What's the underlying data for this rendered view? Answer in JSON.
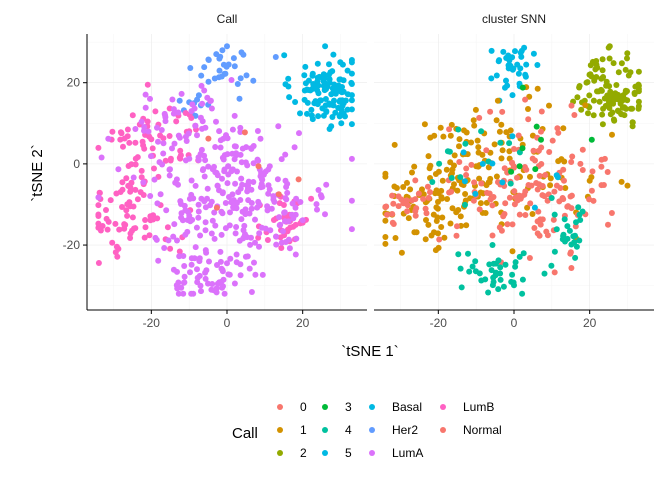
{
  "chart_data": {
    "type": "scatter",
    "xlabel": "`tSNE 1`",
    "ylabel": "`tSNE 2`",
    "xlim": [
      -37,
      37
    ],
    "ylim": [
      -36,
      32
    ],
    "x_ticks": [
      -20,
      0,
      20
    ],
    "y_ticks": [
      -20,
      0,
      20
    ],
    "x_tick_labels": [
      "-20",
      "0",
      "20"
    ],
    "y_tick_labels": [
      "-20",
      "0",
      "20"
    ],
    "grid": true,
    "legend": {
      "position": "bottom",
      "title": "Call",
      "columns": [
        [
          "0",
          "1",
          "2"
        ],
        [
          "3",
          "4",
          "5"
        ],
        [
          "Basal",
          "Her2",
          "LumA"
        ],
        [
          "LumB",
          "Normal"
        ]
      ]
    },
    "colors": {
      "0": "#F8766D",
      "1": "#D39200",
      "2": "#93AA00",
      "3": "#00BA38",
      "4": "#00C19F",
      "5": "#00B9E3",
      "Basal": "#00B9E3",
      "Her2": "#619CFF",
      "LumA": "#DB72FB",
      "LumB": "#FF61C3",
      "Normal": "#F8766D"
    },
    "panels": [
      {
        "strip": "Call",
        "clusters": [
          {
            "group": "Basal",
            "n": 120,
            "cx": 26,
            "cy": 18,
            "sx": 4.5,
            "sy": 4.5
          },
          {
            "group": "Her2",
            "n": 30,
            "cx": 0,
            "cy": 24,
            "sx": 4,
            "sy": 3
          },
          {
            "group": "Her2",
            "n": 10,
            "cx": -8,
            "cy": 14,
            "sx": 3,
            "sy": 3
          },
          {
            "group": "LumB",
            "n": 60,
            "cx": -20,
            "cy": 6,
            "sx": 7,
            "sy": 5
          },
          {
            "group": "LumB",
            "n": 70,
            "cx": -25,
            "cy": -13,
            "sx": 6,
            "sy": 5
          },
          {
            "group": "LumB",
            "n": 40,
            "cx": 16,
            "cy": -14,
            "sx": 3,
            "sy": 5
          },
          {
            "group": "LumA",
            "n": 280,
            "cx": 2,
            "cy": -8,
            "sx": 13,
            "sy": 9
          },
          {
            "group": "LumA",
            "n": 50,
            "cx": -10,
            "cy": 8,
            "sx": 8,
            "sy": 5
          },
          {
            "group": "LumA",
            "n": 50,
            "cx": -5,
            "cy": -28,
            "sx": 5,
            "sy": 3
          },
          {
            "group": "Normal",
            "n": 6,
            "cx": 5,
            "cy": 0,
            "sx": 8,
            "sy": 6
          }
        ]
      },
      {
        "strip": "cluster SNN",
        "clusters": [
          {
            "group": "2",
            "n": 110,
            "cx": 26,
            "cy": 18,
            "sx": 4.5,
            "sy": 4.5
          },
          {
            "group": "5",
            "n": 35,
            "cx": 0,
            "cy": 24,
            "sx": 4,
            "sy": 3
          },
          {
            "group": "1",
            "n": 90,
            "cx": -20,
            "cy": -10,
            "sx": 9,
            "sy": 6
          },
          {
            "group": "1",
            "n": 120,
            "cx": -5,
            "cy": 0,
            "sx": 12,
            "sy": 8
          },
          {
            "group": "0",
            "n": 150,
            "cx": 5,
            "cy": -5,
            "sx": 10,
            "sy": 8
          },
          {
            "group": "0",
            "n": 30,
            "cx": -28,
            "cy": -10,
            "sx": 4,
            "sy": 3
          },
          {
            "group": "4",
            "n": 40,
            "cx": -5,
            "cy": -27,
            "sx": 5,
            "sy": 3
          },
          {
            "group": "4",
            "n": 25,
            "cx": 15,
            "cy": -17,
            "sx": 3,
            "sy": 4
          },
          {
            "group": "4",
            "n": 15,
            "cx": -10,
            "cy": 2,
            "sx": 6,
            "sy": 4
          },
          {
            "group": "3",
            "n": 8,
            "cx": 5,
            "cy": 0,
            "sx": 8,
            "sy": 6
          },
          {
            "group": "5",
            "n": 10,
            "cx": -5,
            "cy": -5,
            "sx": 10,
            "sy": 6
          }
        ]
      }
    ]
  }
}
